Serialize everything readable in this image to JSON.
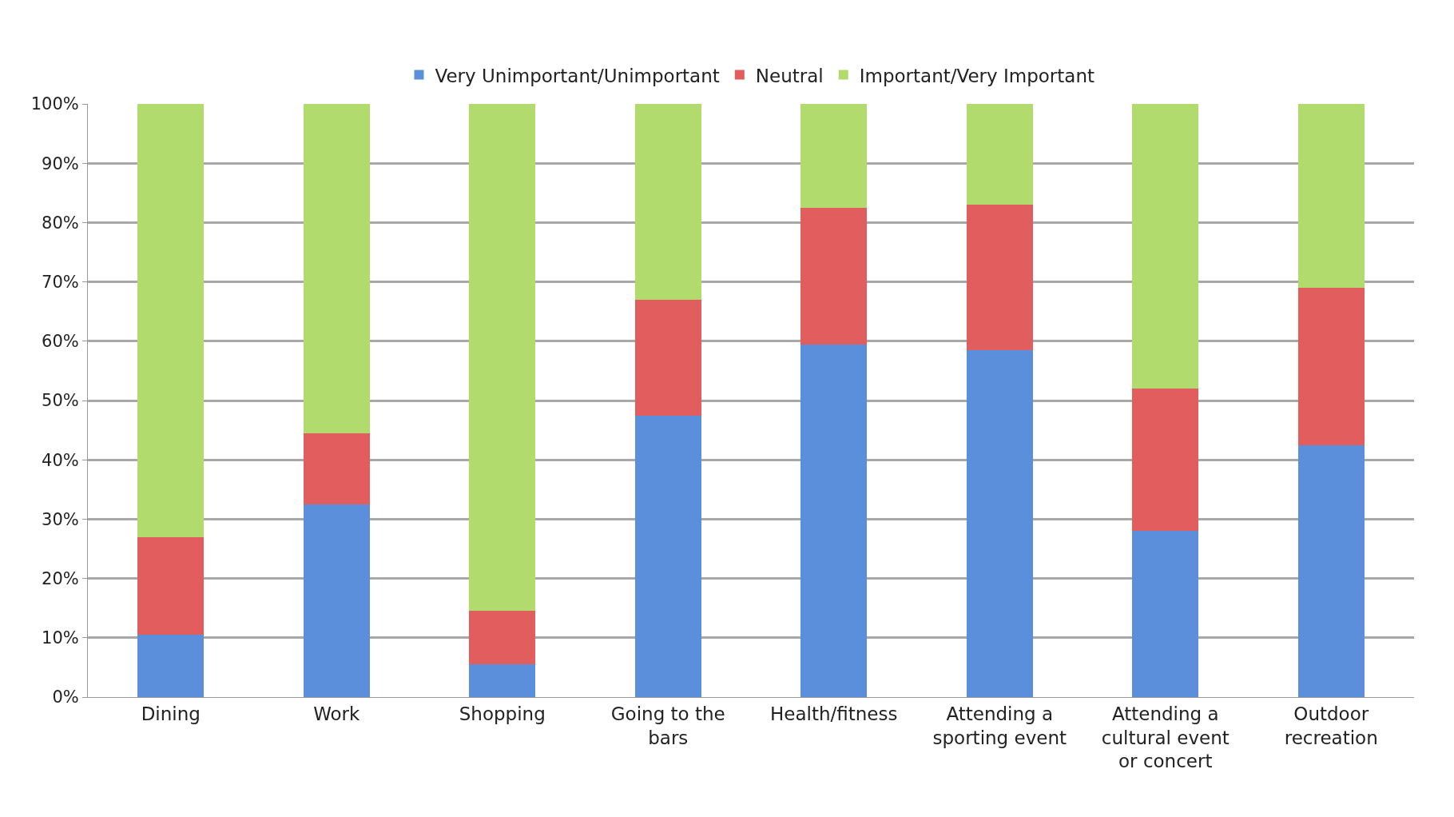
{
  "chart_data": {
    "type": "bar",
    "stacked": true,
    "categories": [
      "Dining",
      "Work",
      "Shopping",
      "Going to the bars",
      "Health/fitness",
      "Attending a sporting event",
      "Attending a cultural event or concert",
      "Outdoor recreation"
    ],
    "series": [
      {
        "name": "Very Unimportant/Unimportant",
        "color": "#5b8fdc",
        "values": [
          10.5,
          32.5,
          5.5,
          47.5,
          59.5,
          58.5,
          28,
          42.5
        ]
      },
      {
        "name": "Neutral",
        "color": "#e25e5e",
        "values": [
          16.5,
          12,
          9,
          19.5,
          23,
          24.5,
          24,
          26.5
        ]
      },
      {
        "name": "Important/Very Important",
        "color": "#b2db6e",
        "values": [
          73,
          55.5,
          85.5,
          33,
          17.5,
          17,
          48,
          31
        ]
      }
    ],
    "ylim": [
      0,
      100
    ],
    "yticks": [
      {
        "value": 0,
        "label": "0%"
      },
      {
        "value": 10,
        "label": "10%"
      },
      {
        "value": 20,
        "label": "20%"
      },
      {
        "value": 30,
        "label": "30%"
      },
      {
        "value": 40,
        "label": "40%"
      },
      {
        "value": 50,
        "label": "50%"
      },
      {
        "value": 60,
        "label": "60%"
      },
      {
        "value": 70,
        "label": "70%"
      },
      {
        "value": 80,
        "label": "80%"
      },
      {
        "value": 90,
        "label": "90%"
      },
      {
        "value": 100,
        "label": "100%"
      }
    ],
    "grid": "y",
    "legend": "top"
  }
}
